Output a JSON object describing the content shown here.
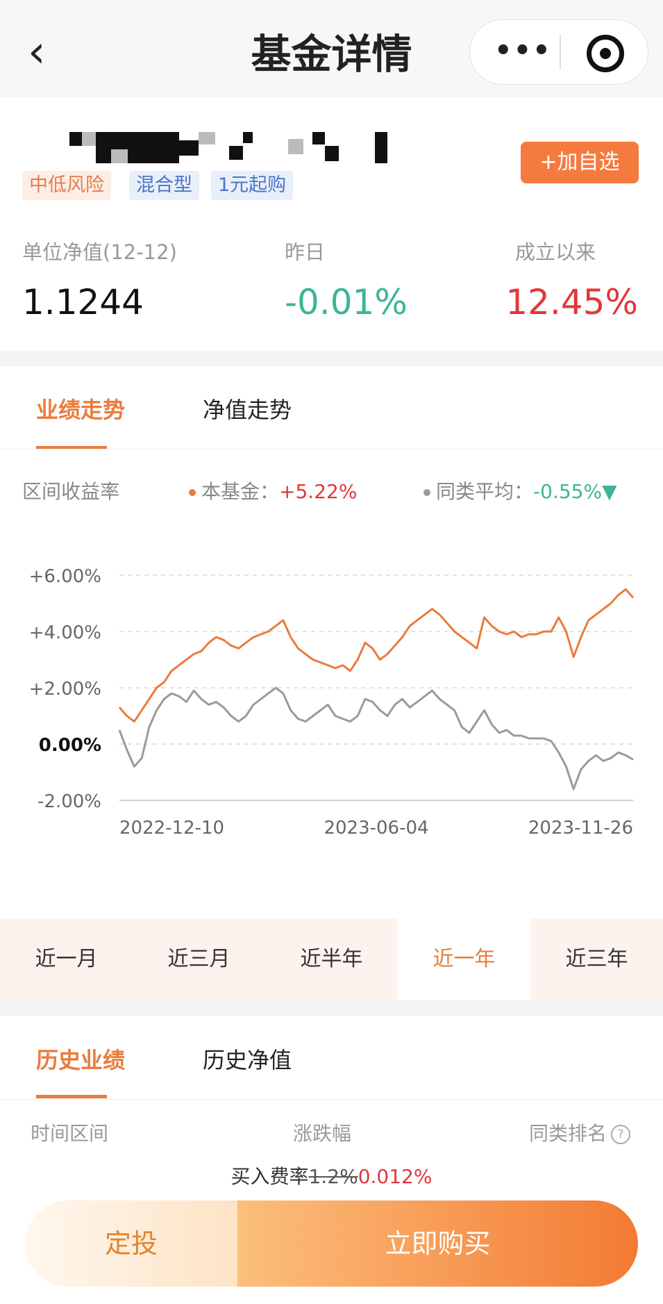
{
  "header": {
    "title": "基金详情",
    "back_icon": "‹",
    "more_icon": "•••"
  },
  "fund": {
    "tags": [
      "中低风险",
      "混合型",
      "1元起购"
    ],
    "add_button": "+加自选",
    "stats": [
      {
        "label": "单位净值(12-12)",
        "value": "1.1244"
      },
      {
        "label": "昨日",
        "value": "-0.01%"
      },
      {
        "label": "成立以来",
        "value": "12.45%"
      }
    ],
    "colors": {
      "up": "#e0383a",
      "down": "#3cb596",
      "accent": "#ea7b3c"
    }
  },
  "chart_tabs": [
    "业绩走势",
    "净值走势"
  ],
  "range_label": "区间收益率",
  "legend": {
    "fund_label": "本基金：",
    "fund_value": "+5.22%",
    "avg_label": "同类平均：",
    "avg_value": "-0.55%▼"
  },
  "chart_data": {
    "type": "line",
    "x_ticks": [
      "2022-12-10",
      "2023-06-04",
      "2023-11-26"
    ],
    "y_ticks": [
      "+6.00%",
      "+4.00%",
      "+2.00%",
      "0.00%",
      "-2.00%"
    ],
    "ylim": [
      -2,
      6
    ],
    "series": [
      {
        "name": "本基金",
        "color": "#ea7b3c",
        "values": [
          1.3,
          1.0,
          0.8,
          1.2,
          1.6,
          2.0,
          2.2,
          2.6,
          2.8,
          3.0,
          3.2,
          3.3,
          3.6,
          3.8,
          3.7,
          3.5,
          3.4,
          3.6,
          3.8,
          3.9,
          4.0,
          4.2,
          4.4,
          3.8,
          3.4,
          3.2,
          3.0,
          2.9,
          2.8,
          2.7,
          2.8,
          2.6,
          3.0,
          3.6,
          3.4,
          3.0,
          3.2,
          3.5,
          3.8,
          4.2,
          4.4,
          4.6,
          4.8,
          4.6,
          4.3,
          4.0,
          3.8,
          3.6,
          3.4,
          4.5,
          4.2,
          4.0,
          3.9,
          4.0,
          3.8,
          3.9,
          3.9,
          4.0,
          4.0,
          4.5,
          4.0,
          3.1,
          3.8,
          4.4,
          4.6,
          4.8,
          5.0,
          5.3,
          5.5,
          5.2
        ]
      },
      {
        "name": "同类平均",
        "color": "#9a9a9a",
        "values": [
          0.5,
          -0.2,
          -0.8,
          -0.5,
          0.6,
          1.2,
          1.6,
          1.8,
          1.7,
          1.5,
          1.9,
          1.6,
          1.4,
          1.5,
          1.3,
          1.0,
          0.8,
          1.0,
          1.4,
          1.6,
          1.8,
          2.0,
          1.8,
          1.2,
          0.9,
          0.8,
          1.0,
          1.2,
          1.4,
          1.0,
          0.9,
          0.8,
          1.0,
          1.6,
          1.5,
          1.2,
          1.0,
          1.4,
          1.6,
          1.3,
          1.5,
          1.7,
          1.9,
          1.6,
          1.4,
          1.2,
          0.6,
          0.4,
          0.8,
          1.2,
          0.7,
          0.4,
          0.5,
          0.3,
          0.3,
          0.2,
          0.2,
          0.2,
          0.1,
          -0.3,
          -0.8,
          -1.6,
          -0.9,
          -0.6,
          -0.4,
          -0.6,
          -0.5,
          -0.3,
          -0.4,
          -0.55
        ]
      }
    ]
  },
  "period_tabs": [
    "近一月",
    "近三月",
    "近半年",
    "近一年",
    "近三年"
  ],
  "active_period": 3,
  "history_tabs": [
    "历史业绩",
    "历史净值"
  ],
  "history_columns": [
    "时间区间",
    "涨跌幅",
    "同类排名"
  ],
  "fee": {
    "label": "买入费率",
    "old": "1.2%",
    "new": "0.012%"
  },
  "buttons": {
    "invest": "定投",
    "buy": "立即购买"
  }
}
